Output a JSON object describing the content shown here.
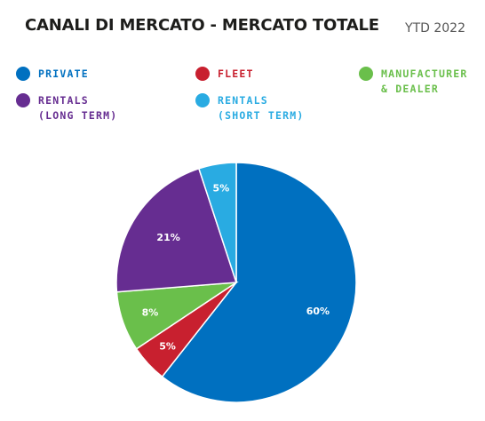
{
  "header": {
    "title": "CANALI DI MERCATO - MERCATO TOTALE",
    "period": "YTD 2022"
  },
  "chart_data": {
    "type": "pie",
    "title": "CANALI DI MERCATO - MERCATO TOTALE",
    "subtitle": "YTD 2022",
    "legend_placement": "top",
    "slices": [
      {
        "name": "PRIVATE",
        "value": 60,
        "label": "60%",
        "color": "#0070c0"
      },
      {
        "name": "FLEET",
        "value": 5,
        "label": "5%",
        "color": "#c8202f"
      },
      {
        "name": "MANUFACTURER\n& DEALER",
        "value": 8,
        "label": "8%",
        "color": "#6abf4b"
      },
      {
        "name": "RENTALS\n(LONG TERM)",
        "value": 21,
        "label": "21%",
        "color": "#662d91"
      },
      {
        "name": "RENTALS\n(SHORT TERM)",
        "value": 5,
        "label": "5%",
        "color": "#29abe2"
      }
    ]
  }
}
